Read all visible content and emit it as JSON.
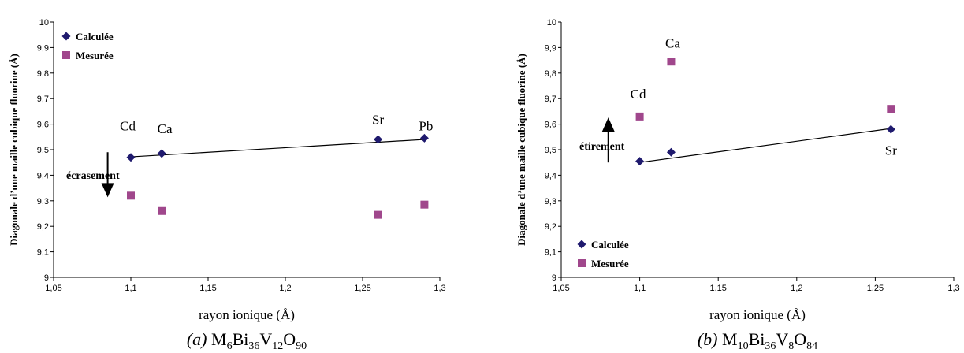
{
  "chart_data": [
    {
      "type": "scatter",
      "caption": {
        "prefix": "(a) ",
        "formula": [
          [
            "M",
            ""
          ],
          [
            "6",
            "sub"
          ],
          [
            "Bi",
            ""
          ],
          [
            "36",
            "sub"
          ],
          [
            "V",
            ""
          ],
          [
            "12",
            "sub"
          ],
          [
            "O",
            ""
          ],
          [
            "90",
            "sub"
          ]
        ]
      },
      "xlabel": "rayon ionique (Å)",
      "ylabel": "Diagonale d’une maille cubique fluorine (Å)",
      "xlim": [
        1.05,
        1.3
      ],
      "ylim": [
        9,
        10
      ],
      "xticks": [
        "1,05",
        "1,1",
        "1,15",
        "1,2",
        "1,25",
        "1,3"
      ],
      "yticks": [
        "9",
        "9,1",
        "9,2",
        "9,3",
        "9,4",
        "9,5",
        "9,6",
        "9,7",
        "9,8",
        "9,9",
        "10"
      ],
      "grid": false,
      "legend_position": "top-left",
      "series": [
        {
          "name": "Calculée",
          "marker": "diamond",
          "color": "#1f1a6e",
          "x": [
            1.1,
            1.12,
            1.26,
            1.29
          ],
          "y": [
            9.47,
            9.485,
            9.54,
            9.545
          ]
        },
        {
          "name": "Mesurée",
          "marker": "square",
          "color": "#a0478c",
          "x": [
            1.1,
            1.12,
            1.26,
            1.29
          ],
          "y": [
            9.32,
            9.26,
            9.245,
            9.285
          ]
        }
      ],
      "trend_line": {
        "x": [
          1.1,
          1.29
        ],
        "y": [
          9.472,
          9.54
        ]
      },
      "point_labels": [
        {
          "text": "Cd",
          "x": 1.098,
          "y": 9.575
        },
        {
          "text": "Ca",
          "x": 1.122,
          "y": 9.565
        },
        {
          "text": "Sr",
          "x": 1.26,
          "y": 9.6
        },
        {
          "text": "Pb",
          "x": 1.291,
          "y": 9.575
        }
      ],
      "annotation": {
        "text": "écrasement",
        "direction": "down",
        "x": 1.085,
        "y_from": 9.49,
        "y_to": 9.32
      }
    },
    {
      "type": "scatter",
      "caption": {
        "prefix": "(b) ",
        "formula": [
          [
            "M",
            ""
          ],
          [
            "10",
            "sub"
          ],
          [
            "Bi",
            ""
          ],
          [
            "36",
            "sub"
          ],
          [
            "V",
            ""
          ],
          [
            "8",
            "sub"
          ],
          [
            "O",
            ""
          ],
          [
            "84",
            "sub"
          ]
        ]
      },
      "xlabel": "rayon ionique (Å)",
      "ylabel": "Diagonale d’une maille cubique fluorine (Å)",
      "xlim": [
        1.05,
        1.3
      ],
      "ylim": [
        9,
        10
      ],
      "xticks": [
        "1,05",
        "1,1",
        "1,15",
        "1,2",
        "1,25",
        "1,3"
      ],
      "yticks": [
        "9",
        "9,1",
        "9,2",
        "9,3",
        "9,4",
        "9,5",
        "9,6",
        "9,7",
        "9,8",
        "9,9",
        "10"
      ],
      "grid": false,
      "legend_position": "bottom-left",
      "series": [
        {
          "name": "Calculée",
          "marker": "diamond",
          "color": "#1f1a6e",
          "x": [
            1.1,
            1.12,
            1.26
          ],
          "y": [
            9.455,
            9.49,
            9.58
          ]
        },
        {
          "name": "Mesurée",
          "marker": "square",
          "color": "#a0478c",
          "x": [
            1.1,
            1.12,
            1.26
          ],
          "y": [
            9.63,
            9.845,
            9.66
          ]
        }
      ],
      "trend_line": {
        "x": [
          1.1,
          1.26
        ],
        "y": [
          9.45,
          9.583
        ]
      },
      "point_labels": [
        {
          "text": "Cd",
          "x": 1.099,
          "y": 9.7
        },
        {
          "text": "Ca",
          "x": 1.121,
          "y": 9.9
        },
        {
          "text": "Sr",
          "x": 1.26,
          "y": 9.48
        }
      ],
      "annotation": {
        "text": "étirement",
        "direction": "up",
        "x": 1.08,
        "y_from": 9.45,
        "y_to": 9.62
      }
    }
  ]
}
